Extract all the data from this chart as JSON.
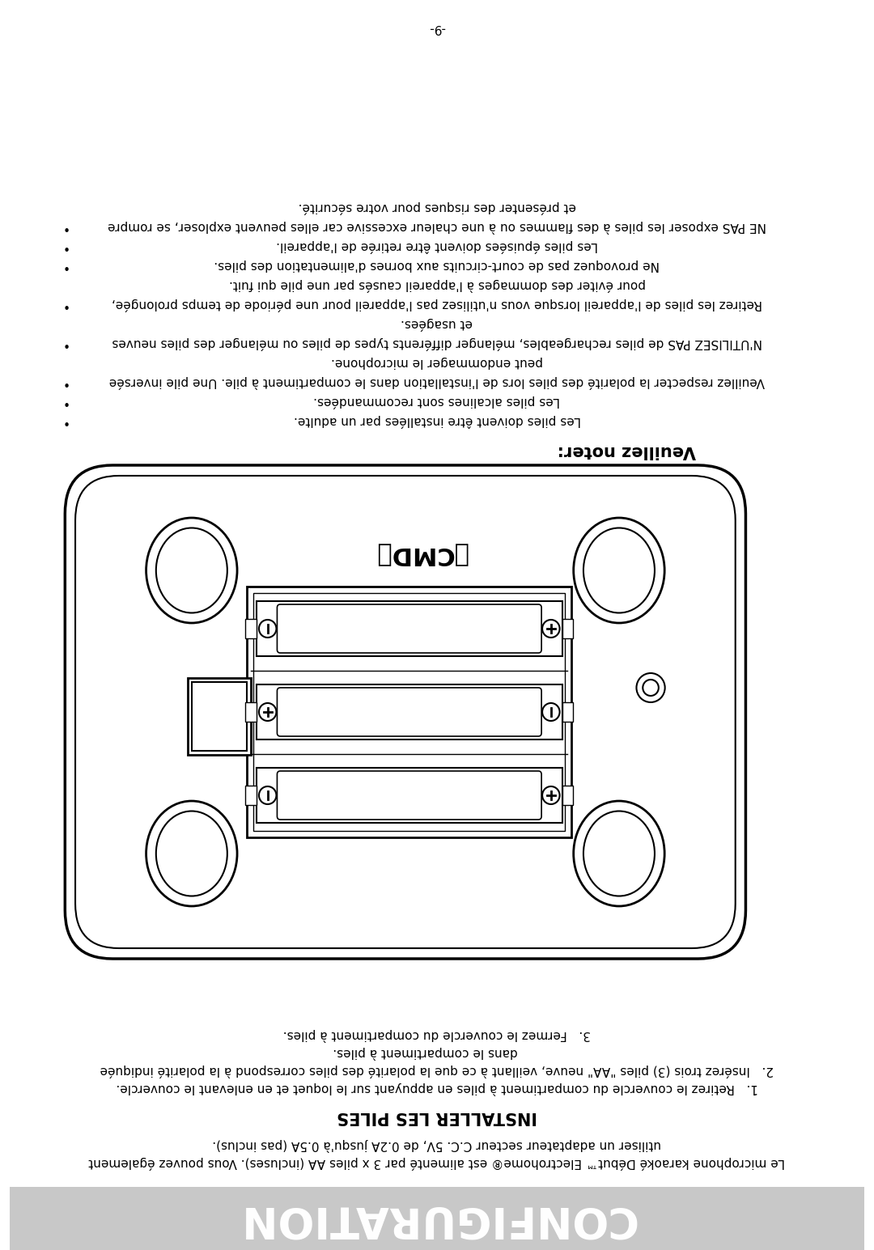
{
  "page_number": "-9-",
  "background_color": "#ffffff",
  "banner_color": "#c8c8c8",
  "banner_text": "CONFIGURATION",
  "banner_text_color": "#ffffff",
  "banner_font_size": 38,
  "section_header": "Veuillez noter:",
  "section_header_font_size": 15,
  "install_header": "INSTALLER LES PILES",
  "install_header_font_size": 15,
  "intro_line1": "Le microphone karaoké Début™ Electrohome® est alimenté par 3 x piles AA (incluses). Vous pouvez également",
  "intro_line2": "utiliser un adaptateur secteur C.C. 5V, de 0.2A jusqu'à 0.5A (pas inclus).",
  "install_steps": [
    "1.   Retirez le couvercle du compartiment à piles en appuyant sur le loquet et en enlevant le couvercle.",
    "2.   Insérez trois (3) piles \"AA\" neuve, veillant à ce que la polarité des piles correspond à la polarité indiquée",
    "      dans le compartiment à piles.",
    "3.   Fermez le couvercle du compartiment à piles."
  ],
  "note_bullets": [
    "Les piles doivent être installées par un adulte.",
    "Les piles alcalines sont recommandées.",
    "Veuillez respecter la polarité des piles lors de l'installation dans le compartiment à pile. Une pile inversée",
    "peut endommager le microphone.",
    "N'UTILISEZ PAS de piles rechargeables, mélanger différents types de piles ou mélanger des piles neuves",
    "et usagées.",
    "Retirez les piles de l'appareil lorsque vous n'utilisez pas l'appareil pour une période de temps prolongée,",
    "pour éviter des dommages à l'appareil causés par une pile qui fuit.",
    "Ne provoquez pas de court-circuits aux bornes d'alimentation des piles.",
    "Les piles épuisées doivent être retirée de l'appareil.",
    "NE PAS exposer les piles à des flammes ou à une chaleur excessive car elles peuvent exploser, se rompre",
    "et présenter des risques pour votre sécurité."
  ],
  "note_bullet_flags": [
    true,
    true,
    true,
    false,
    true,
    false,
    true,
    false,
    true,
    true,
    true,
    false
  ],
  "font_size_body": 11,
  "text_color": "#000000"
}
